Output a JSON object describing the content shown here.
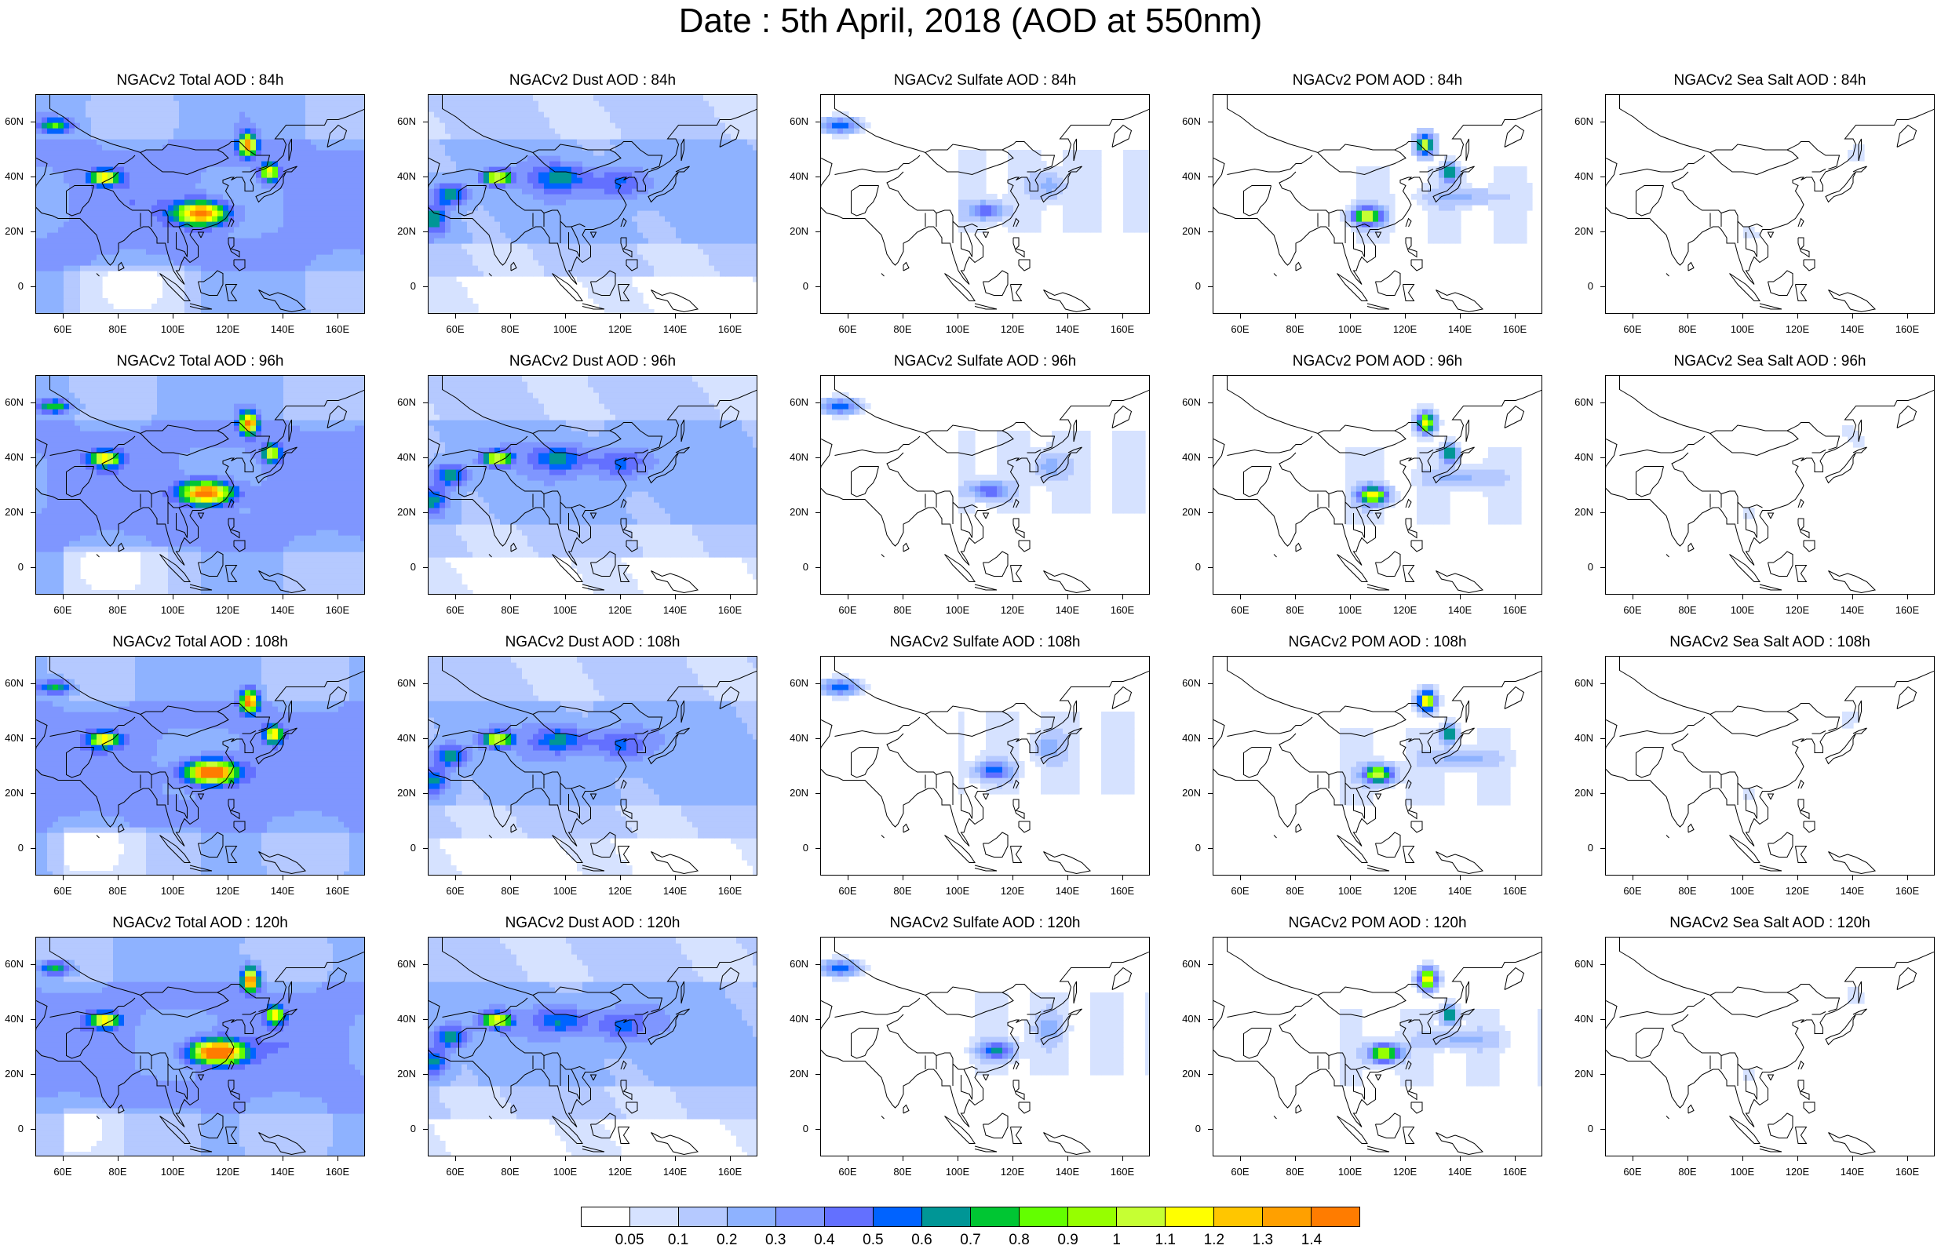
{
  "title": "Date : 5th April, 2018 (AOD at 550nm)",
  "axes": {
    "y_ticks": [
      "60N",
      "40N",
      "20N",
      "0"
    ],
    "x_ticks": [
      "60E",
      "80E",
      "100E",
      "120E",
      "140E",
      "160E"
    ]
  },
  "panels": [
    {
      "title": "NGACv2 Total AOD : 84h",
      "variable": "total",
      "hour": 84
    },
    {
      "title": "NGACv2 Dust AOD : 84h",
      "variable": "dust",
      "hour": 84
    },
    {
      "title": "NGACv2 Sulfate AOD : 84h",
      "variable": "sulfate",
      "hour": 84
    },
    {
      "title": "NGACv2 POM AOD : 84h",
      "variable": "pom",
      "hour": 84
    },
    {
      "title": "NGACv2 Sea Salt AOD : 84h",
      "variable": "seasalt",
      "hour": 84
    },
    {
      "title": "NGACv2 Total AOD : 96h",
      "variable": "total",
      "hour": 96
    },
    {
      "title": "NGACv2 Dust AOD : 96h",
      "variable": "dust",
      "hour": 96
    },
    {
      "title": "NGACv2 Sulfate AOD : 96h",
      "variable": "sulfate",
      "hour": 96
    },
    {
      "title": "NGACv2 POM AOD : 96h",
      "variable": "pom",
      "hour": 96
    },
    {
      "title": "NGACv2 Sea Salt AOD : 96h",
      "variable": "seasalt",
      "hour": 96
    },
    {
      "title": "NGACv2 Total AOD : 108h",
      "variable": "total",
      "hour": 108
    },
    {
      "title": "NGACv2 Dust AOD : 108h",
      "variable": "dust",
      "hour": 108
    },
    {
      "title": "NGACv2 Sulfate AOD : 108h",
      "variable": "sulfate",
      "hour": 108
    },
    {
      "title": "NGACv2 POM AOD : 108h",
      "variable": "pom",
      "hour": 108
    },
    {
      "title": "NGACv2 Sea Salt AOD : 108h",
      "variable": "seasalt",
      "hour": 108
    },
    {
      "title": "NGACv2 Total AOD : 120h",
      "variable": "total",
      "hour": 120
    },
    {
      "title": "NGACv2 Dust AOD : 120h",
      "variable": "dust",
      "hour": 120
    },
    {
      "title": "NGACv2 Sulfate AOD : 120h",
      "variable": "sulfate",
      "hour": 120
    },
    {
      "title": "NGACv2 POM AOD : 120h",
      "variable": "pom",
      "hour": 120
    },
    {
      "title": "NGACv2 Sea Salt  AOD : 120h",
      "variable": "seasalt",
      "hour": 120
    }
  ],
  "colorbar": {
    "labels": [
      "0.05",
      "0.1",
      "0.2",
      "0.3",
      "0.4",
      "0.5",
      "0.6",
      "0.7",
      "0.8",
      "0.9",
      "1",
      "1.1",
      "1.2",
      "1.3",
      "1.4"
    ],
    "colors": [
      "#ffffff",
      "#d6e2ff",
      "#b5c9ff",
      "#8eb2ff",
      "#7f96ff",
      "#6370ff",
      "#0063ff",
      "#009696",
      "#00c633",
      "#63ff00",
      "#96ff00",
      "#c6ff33",
      "#ffff00",
      "#ffc600",
      "#ffa000",
      "#ff7c00",
      "#ff1900"
    ]
  }
}
